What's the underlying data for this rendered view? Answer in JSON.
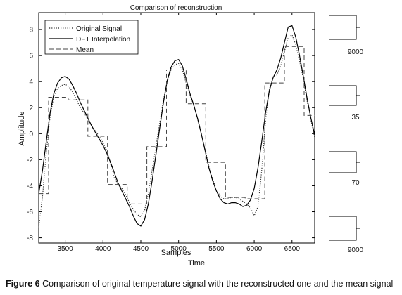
{
  "caption": {
    "label": "Figure 6",
    "text": "Comparison of original temperature signal with the reconstructed one and the mean signal"
  },
  "side_labels": [
    "9000",
    "35",
    "70",
    "9000"
  ],
  "chart_data": {
    "type": "line",
    "title": "Comparison of reconstruction",
    "xlabel": "Samples",
    "xlabel2": "Time",
    "ylabel": "Amplitude",
    "xlim": [
      3150,
      6800
    ],
    "ylim": [
      -8.4,
      9.3
    ],
    "xticks": [
      3500,
      4000,
      4500,
      5000,
      5500,
      6000,
      6500
    ],
    "yticks": [
      -8,
      -6,
      -4,
      -2,
      0,
      2,
      4,
      6,
      8
    ],
    "grid": false,
    "legend_position": "top-left",
    "series": [
      {
        "name": "Original Signal",
        "style": "dotted",
        "points": [
          [
            3150,
            -7.2
          ],
          [
            3200,
            -4.8
          ],
          [
            3250,
            -1.5
          ],
          [
            3300,
            1.3
          ],
          [
            3350,
            2.9
          ],
          [
            3400,
            3.5
          ],
          [
            3450,
            3.7
          ],
          [
            3500,
            3.8
          ],
          [
            3550,
            3.6
          ],
          [
            3600,
            3.2
          ],
          [
            3650,
            2.6
          ],
          [
            3700,
            2.0
          ],
          [
            3750,
            1.6
          ],
          [
            3800,
            1.1
          ],
          [
            3850,
            0.6
          ],
          [
            3900,
            0.2
          ],
          [
            3950,
            -0.2
          ],
          [
            4000,
            -0.7
          ],
          [
            4050,
            -1.3
          ],
          [
            4100,
            -2.3
          ],
          [
            4150,
            -3.4
          ],
          [
            4200,
            -3.9
          ],
          [
            4250,
            -4.2
          ],
          [
            4300,
            -4.7
          ],
          [
            4350,
            -5.3
          ],
          [
            4400,
            -5.8
          ],
          [
            4450,
            -6.2
          ],
          [
            4500,
            -6.4
          ],
          [
            4550,
            -5.9
          ],
          [
            4600,
            -4.6
          ],
          [
            4650,
            -2.8
          ],
          [
            4700,
            -1.0
          ],
          [
            4750,
            0.8
          ],
          [
            4800,
            2.6
          ],
          [
            4850,
            4.0
          ],
          [
            4900,
            4.9
          ],
          [
            4950,
            5.3
          ],
          [
            5000,
            5.4
          ],
          [
            5050,
            4.9
          ],
          [
            5100,
            3.9
          ],
          [
            5150,
            3.0
          ],
          [
            5200,
            2.2
          ],
          [
            5250,
            1.2
          ],
          [
            5300,
            0.0
          ],
          [
            5350,
            -1.2
          ],
          [
            5400,
            -2.5
          ],
          [
            5450,
            -3.5
          ],
          [
            5500,
            -4.3
          ],
          [
            5550,
            -4.8
          ],
          [
            5600,
            -5.0
          ],
          [
            5650,
            -5.0
          ],
          [
            5700,
            -4.9
          ],
          [
            5750,
            -4.9
          ],
          [
            5800,
            -5.0
          ],
          [
            5850,
            -5.2
          ],
          [
            5900,
            -5.4
          ],
          [
            5950,
            -5.7
          ],
          [
            6000,
            -6.3
          ],
          [
            6050,
            -5.6
          ],
          [
            6100,
            -2.8
          ],
          [
            6150,
            1.0
          ],
          [
            6200,
            3.4
          ],
          [
            6250,
            4.4
          ],
          [
            6300,
            4.5
          ],
          [
            6350,
            5.2
          ],
          [
            6400,
            6.3
          ],
          [
            6450,
            7.4
          ],
          [
            6500,
            7.6
          ],
          [
            6550,
            6.8
          ],
          [
            6600,
            5.6
          ],
          [
            6650,
            4.2
          ],
          [
            6700,
            2.5
          ],
          [
            6750,
            1.1
          ],
          [
            6800,
            -0.3
          ]
        ]
      },
      {
        "name": "DFT Interpolation",
        "style": "solid",
        "points": [
          [
            3150,
            -4.6
          ],
          [
            3200,
            -2.8
          ],
          [
            3250,
            -0.6
          ],
          [
            3300,
            1.6
          ],
          [
            3350,
            3.1
          ],
          [
            3400,
            3.9
          ],
          [
            3450,
            4.3
          ],
          [
            3500,
            4.4
          ],
          [
            3550,
            4.2
          ],
          [
            3600,
            3.7
          ],
          [
            3650,
            3.1
          ],
          [
            3700,
            2.4
          ],
          [
            3750,
            1.8
          ],
          [
            3800,
            1.2
          ],
          [
            3850,
            0.6
          ],
          [
            3900,
            0.1
          ],
          [
            3950,
            -0.4
          ],
          [
            4000,
            -0.9
          ],
          [
            4050,
            -1.5
          ],
          [
            4100,
            -2.2
          ],
          [
            4150,
            -3.0
          ],
          [
            4200,
            -3.8
          ],
          [
            4250,
            -4.4
          ],
          [
            4300,
            -5.0
          ],
          [
            4350,
            -5.6
          ],
          [
            4400,
            -6.3
          ],
          [
            4450,
            -6.9
          ],
          [
            4500,
            -7.1
          ],
          [
            4550,
            -6.6
          ],
          [
            4600,
            -5.4
          ],
          [
            4650,
            -3.6
          ],
          [
            4700,
            -1.6
          ],
          [
            4750,
            0.4
          ],
          [
            4800,
            2.4
          ],
          [
            4850,
            4.1
          ],
          [
            4900,
            5.1
          ],
          [
            4950,
            5.6
          ],
          [
            5000,
            5.7
          ],
          [
            5050,
            5.2
          ],
          [
            5100,
            4.2
          ],
          [
            5150,
            3.1
          ],
          [
            5200,
            2.2
          ],
          [
            5250,
            1.2
          ],
          [
            5300,
            0.0
          ],
          [
            5350,
            -1.3
          ],
          [
            5400,
            -2.6
          ],
          [
            5450,
            -3.6
          ],
          [
            5500,
            -4.4
          ],
          [
            5550,
            -5.0
          ],
          [
            5600,
            -5.3
          ],
          [
            5650,
            -5.4
          ],
          [
            5700,
            -5.3
          ],
          [
            5750,
            -5.3
          ],
          [
            5800,
            -5.4
          ],
          [
            5850,
            -5.6
          ],
          [
            5900,
            -5.5
          ],
          [
            5950,
            -5.1
          ],
          [
            6000,
            -4.2
          ],
          [
            6050,
            -2.6
          ],
          [
            6100,
            -0.6
          ],
          [
            6150,
            1.6
          ],
          [
            6200,
            3.3
          ],
          [
            6250,
            4.3
          ],
          [
            6300,
            4.9
          ],
          [
            6350,
            5.8
          ],
          [
            6400,
            7.0
          ],
          [
            6450,
            8.2
          ],
          [
            6500,
            8.3
          ],
          [
            6550,
            7.4
          ],
          [
            6600,
            6.0
          ],
          [
            6650,
            4.4
          ],
          [
            6700,
            2.7
          ],
          [
            6750,
            1.2
          ],
          [
            6800,
            -0.1
          ]
        ]
      },
      {
        "name": "Mean",
        "style": "dashed",
        "steps": [
          [
            3150,
            3280,
            -4.6
          ],
          [
            3280,
            3540,
            2.8
          ],
          [
            3540,
            3800,
            2.6
          ],
          [
            3800,
            4060,
            -0.2
          ],
          [
            4060,
            4320,
            -3.9
          ],
          [
            4320,
            4580,
            -5.4
          ],
          [
            4580,
            4840,
            -1.0
          ],
          [
            4840,
            5100,
            4.9
          ],
          [
            5100,
            5360,
            2.3
          ],
          [
            5360,
            5620,
            -2.2
          ],
          [
            5620,
            5880,
            -4.9
          ],
          [
            5880,
            6140,
            -5.0
          ],
          [
            6140,
            6400,
            3.9
          ],
          [
            6400,
            6660,
            6.7
          ],
          [
            6660,
            6800,
            1.4
          ]
        ]
      }
    ]
  }
}
